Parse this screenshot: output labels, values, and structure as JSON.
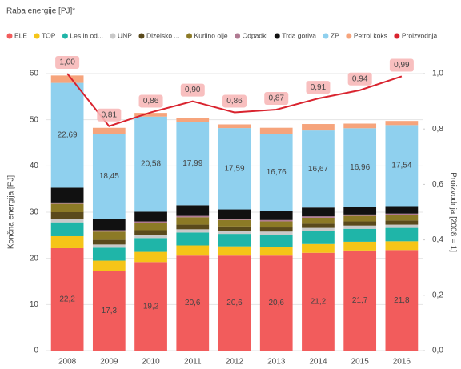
{
  "chart_data": {
    "type": "stacked-bar-line",
    "title": "Raba energije [PJ]*",
    "y_label": "Končna energija [PJ]",
    "y2_label": "Proizvodnja [2008 = 1]",
    "categories": [
      "2008",
      "2009",
      "2010",
      "2011",
      "2012",
      "2013",
      "2014",
      "2015",
      "2016"
    ],
    "ylim": [
      0,
      60
    ],
    "yticks": [
      0,
      10,
      20,
      30,
      40,
      50,
      60
    ],
    "y2lim": [
      0,
      1
    ],
    "y2ticks": [
      {
        "value": 0,
        "label": "0,0"
      },
      {
        "value": 0.2,
        "label": "0,2"
      },
      {
        "value": 0.4,
        "label": "0,4"
      },
      {
        "value": 0.6,
        "label": "0,6"
      },
      {
        "value": 0.8,
        "label": "0,8"
      },
      {
        "value": 1,
        "label": "1,0"
      }
    ],
    "grid": true,
    "series": [
      {
        "name": "ELE",
        "color": "#f25c5c",
        "values": [
          22.2,
          17.3,
          19.2,
          20.6,
          20.6,
          20.6,
          21.2,
          21.7,
          21.8
        ],
        "value_labels": [
          "22,2",
          "17,3",
          "19,2",
          "20,6",
          "20,6",
          "20,6",
          "21,2",
          "21,7",
          "21,8"
        ]
      },
      {
        "name": "TOP",
        "color": "#f5c518",
        "values": [
          2.6,
          2.2,
          2.2,
          2.2,
          2.0,
          1.9,
          1.9,
          1.9,
          1.9
        ]
      },
      {
        "name": "Les in od...",
        "color": "#1fb5a8",
        "values": [
          3.0,
          2.8,
          3.0,
          2.8,
          2.7,
          2.6,
          2.8,
          2.8,
          2.9
        ]
      },
      {
        "name": "UNP",
        "color": "#c9c9c9",
        "values": [
          0.8,
          0.7,
          0.7,
          0.7,
          0.7,
          0.7,
          0.7,
          0.7,
          0.7
        ]
      },
      {
        "name": "Dizelsko ...",
        "color": "#5a4a1c",
        "values": [
          1.4,
          1.0,
          1.0,
          1.0,
          0.9,
          0.9,
          0.9,
          0.9,
          0.9
        ]
      },
      {
        "name": "Kurilno olje",
        "color": "#8c7a26",
        "values": [
          1.8,
          1.8,
          1.6,
          1.6,
          1.4,
          1.3,
          1.3,
          1.2,
          1.2
        ]
      },
      {
        "name": "Odpadki",
        "color": "#b07a92",
        "values": [
          0.3,
          0.3,
          0.3,
          0.3,
          0.3,
          0.3,
          0.3,
          0.3,
          0.3
        ]
      },
      {
        "name": "Trda goriva",
        "color": "#111111",
        "values": [
          3.2,
          2.4,
          2.1,
          2.3,
          2.0,
          1.9,
          1.9,
          1.7,
          1.6
        ]
      },
      {
        "name": "ZP",
        "color": "#8fd0ee",
        "values": [
          22.69,
          18.45,
          20.58,
          17.99,
          17.59,
          16.76,
          16.67,
          16.96,
          17.54
        ],
        "value_labels": [
          "22,69",
          "18,45",
          "20,58",
          "17,99",
          "17,59",
          "16,76",
          "16,67",
          "16,96",
          "17,54"
        ]
      },
      {
        "name": "Petrol koks",
        "color": "#f6a47c",
        "values": [
          1.6,
          1.3,
          0.8,
          0.8,
          0.8,
          1.3,
          1.4,
          1.0,
          0.9
        ]
      },
      {
        "name": "Proizvodnja",
        "color": "#d9232e",
        "axis": "y2",
        "line": true,
        "values": [
          1.0,
          0.81,
          0.86,
          0.9,
          0.86,
          0.87,
          0.91,
          0.94,
          0.99
        ],
        "value_labels": [
          "1,00",
          "0,81",
          "0,86",
          "0,90",
          "0,86",
          "0,87",
          "0,91",
          "0,94",
          "0,99"
        ]
      }
    ]
  }
}
